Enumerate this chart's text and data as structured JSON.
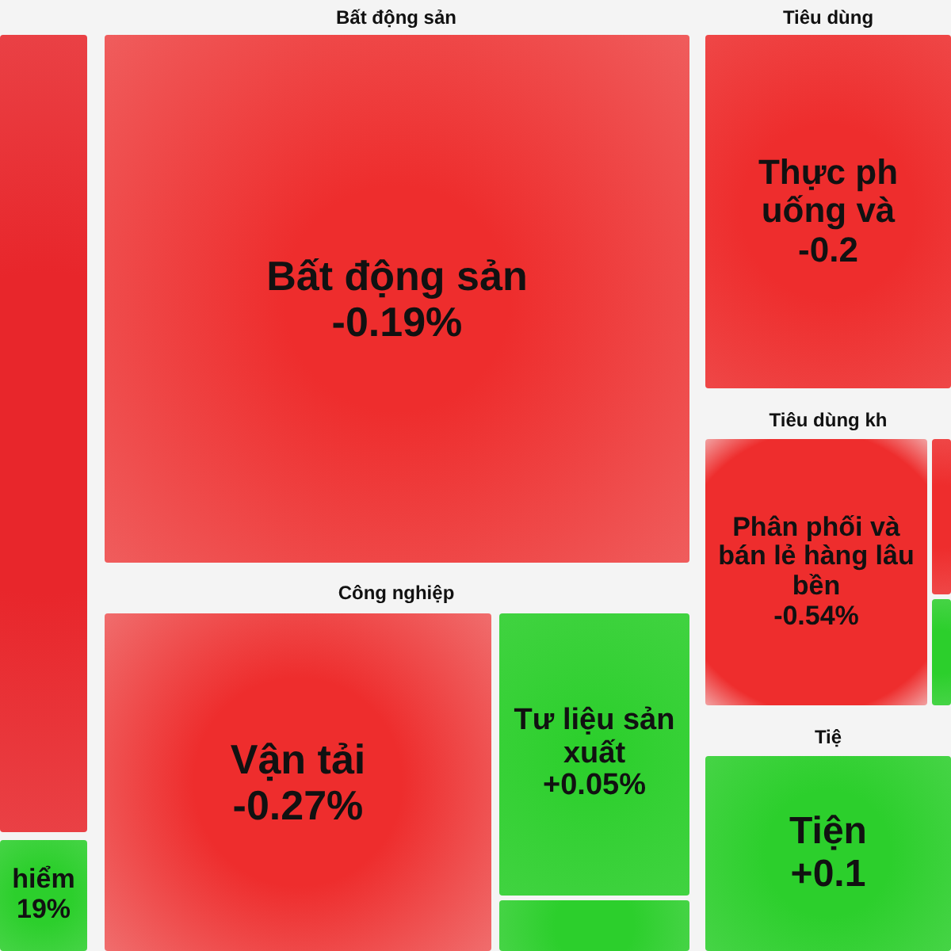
{
  "chart_data": {
    "type": "other",
    "annotations": [
      "Bất động sản",
      "Công nghiệp",
      "Tiêu dùng",
      "Tiêu dùng kh",
      "Tiệ"
    ],
    "categories": [
      null,
      "hiểm",
      "Bất động sản",
      "Vận tải",
      "Tư liệu sản xuất",
      null,
      "Thực ph uống và",
      "Phân phối và bán lẻ hàng lâu bền",
      null,
      null,
      "Tiện"
    ],
    "values": [
      null,
      null,
      -0.19,
      -0.27,
      0.05,
      null,
      null,
      -0.54,
      null,
      null,
      null
    ],
    "value_labels": [
      null,
      "19%",
      "-0.19%",
      "-0.27%",
      "+0.05%",
      null,
      "-0.2",
      "-0.54%",
      null,
      null,
      "+0.1"
    ],
    "colors": [
      "#e8262b",
      "#2ccf2c",
      "#ee2d2d",
      "#ee2d2d",
      "#2ccf2c",
      "#2ccf2c",
      "#ee2d2d",
      "#ee2d2d",
      "#ee2d2d",
      "#2ccf2c",
      "#2ccf2c"
    ]
  }
}
